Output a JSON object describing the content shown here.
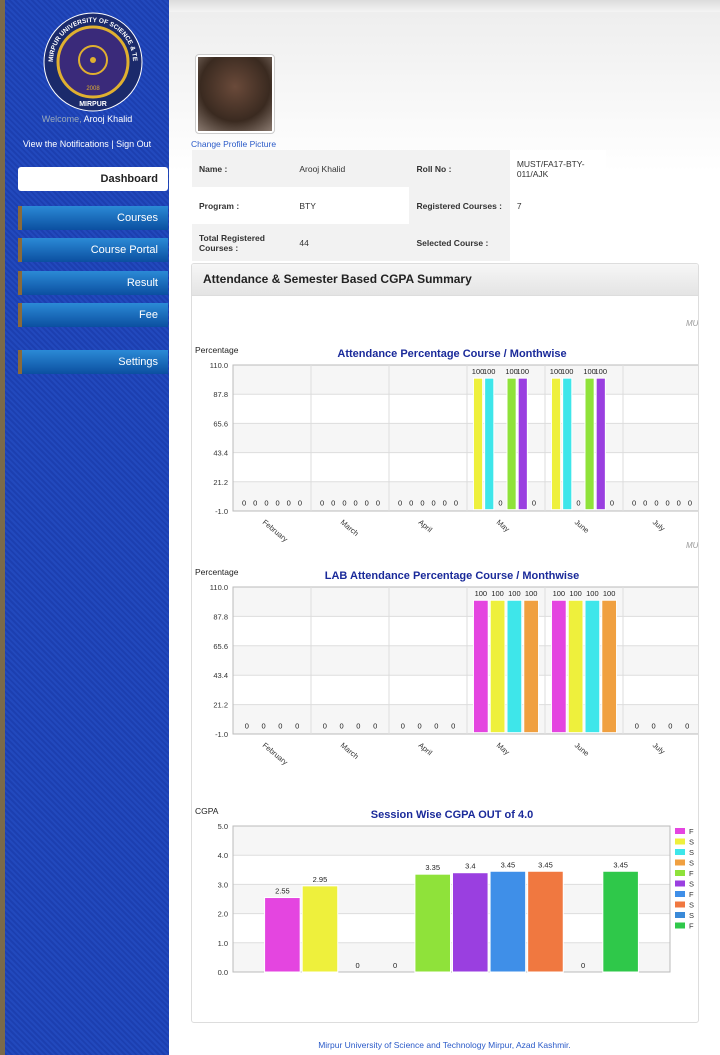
{
  "sidebar": {
    "logo": {
      "arc": "MIRPUR UNIVERSITY OF SCIENCE & TECHNOLOGY",
      "year": "2008",
      "city": "MIRPUR"
    },
    "welcome": "Welcome,",
    "user": "Arooj Khalid",
    "notifications": "View the Notifications",
    "separator": "|",
    "sign_out": "Sign Out",
    "nav": [
      "Dashboard",
      "Courses",
      "Course Portal",
      "Result",
      "Fee",
      "Settings"
    ]
  },
  "profile": {
    "change_picture": "Change Profile Picture",
    "table": {
      "rows": [
        [
          "Name :",
          "Arooj Khalid",
          "Roll No :",
          "MUST/FA17-BTY-011/AJK"
        ],
        [
          "Program :",
          "BTY",
          "Registered Courses :",
          7
        ],
        [
          "Total Registered Courses :",
          44,
          "Selected Course :"
        ]
      ]
    }
  },
  "panel": {
    "title": "Attendance & Semester Based CGPA Summary"
  },
  "charts": [
    {
      "type": "bar",
      "credit": "MU",
      "title": "Attendance Percentage Course / Monthwise",
      "ylabel": "Percentage",
      "categories": [
        "February",
        "March",
        "April",
        "May",
        "June",
        "July"
      ],
      "ylim": [
        -1,
        110
      ],
      "yticks": [
        {
          "value": -1,
          "label": "-1.0"
        },
        {
          "value": 21.2,
          "label": "21.2"
        },
        {
          "value": 43.4,
          "label": "43.4"
        },
        {
          "value": 65.6,
          "label": "65.6"
        },
        {
          "value": 87.8,
          "label": "87.8"
        },
        {
          "value": 110,
          "label": "110.0"
        }
      ],
      "grid": true,
      "series": [
        {
          "color": "#eef03c",
          "values": [
            0,
            0,
            0,
            100,
            100,
            0
          ]
        },
        {
          "color": "#3ee6ea",
          "values": [
            0,
            0,
            0,
            100,
            100,
            0
          ]
        },
        {
          "color": "#e445e0",
          "values": [
            0,
            0,
            0,
            0,
            0,
            0
          ]
        },
        {
          "color": "#8fe23a",
          "values": [
            0,
            0,
            0,
            100,
            100,
            0
          ]
        },
        {
          "color": "#9a3fe0",
          "values": [
            0,
            0,
            0,
            100,
            100,
            0
          ]
        },
        {
          "color": "#f0a040",
          "values": [
            0,
            0,
            0,
            0,
            0,
            0
          ]
        }
      ]
    },
    {
      "type": "bar",
      "credit": "MU",
      "title": "LAB Attendance Percentage Course / Monthwise",
      "ylabel": "Percentage",
      "categories": [
        "February",
        "March",
        "April",
        "May",
        "June",
        "July"
      ],
      "ylim": [
        -1,
        110
      ],
      "yticks": [
        {
          "value": -1,
          "label": "-1.0"
        },
        {
          "value": 21.2,
          "label": "21.2"
        },
        {
          "value": 43.4,
          "label": "43.4"
        },
        {
          "value": 65.6,
          "label": "65.6"
        },
        {
          "value": 87.8,
          "label": "87.8"
        },
        {
          "value": 110,
          "label": "110.0"
        }
      ],
      "grid": true,
      "series": [
        {
          "color": "#e445e0",
          "values": [
            0,
            0,
            0,
            100,
            100,
            0
          ]
        },
        {
          "color": "#eef03c",
          "values": [
            0,
            0,
            0,
            100,
            100,
            0
          ]
        },
        {
          "color": "#3ee6ea",
          "values": [
            0,
            0,
            0,
            100,
            100,
            0
          ]
        },
        {
          "color": "#f0a040",
          "values": [
            0,
            0,
            0,
            100,
            100,
            0
          ]
        }
      ]
    },
    {
      "type": "bar",
      "title": "Session Wise CGPA OUT of 4.0",
      "ylabel": "CGPA",
      "ylim": [
        0,
        5
      ],
      "yticks": [
        {
          "value": 0,
          "label": "0.0"
        },
        {
          "value": 1,
          "label": "1.0"
        },
        {
          "value": 2,
          "label": "2.0"
        },
        {
          "value": 3,
          "label": "3.0"
        },
        {
          "value": 4,
          "label": "4.0"
        },
        {
          "value": 5,
          "label": "5.0"
        }
      ],
      "grid": true,
      "series": [
        {
          "name": "F",
          "color": "#e445e0",
          "values": [
            2.55
          ]
        },
        {
          "name": "S",
          "color": "#eef03c",
          "values": [
            2.95
          ]
        },
        {
          "name": "S",
          "color": "#3ee6ea",
          "values": [
            0
          ]
        },
        {
          "name": "S",
          "color": "#f0a040",
          "values": [
            0
          ]
        },
        {
          "name": "F",
          "color": "#8fe23a",
          "values": [
            3.35
          ]
        },
        {
          "name": "S",
          "color": "#9a3fe0",
          "values": [
            3.4
          ]
        },
        {
          "name": "F",
          "color": "#3f8fe8",
          "values": [
            3.45
          ]
        },
        {
          "name": "S",
          "color": "#f07840",
          "values": [
            3.45
          ]
        },
        {
          "name": "S",
          "color": "#3a8ad8",
          "values": [
            0
          ]
        },
        {
          "name": "F",
          "color": "#2fc84a",
          "values": [
            3.45
          ]
        }
      ]
    }
  ],
  "footer": "Mirpur University of Science and Technology Mirpur, Azad Kashmir."
}
